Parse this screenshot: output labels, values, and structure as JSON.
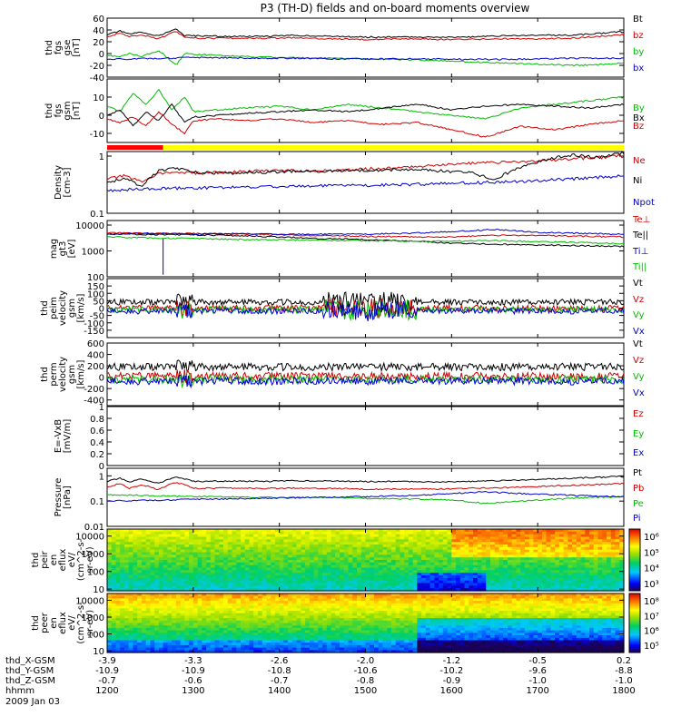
{
  "title": "P3 (TH-D) fields and on-board moments overview",
  "date": "2009 Jan 03",
  "chart_data": [
    {
      "id": "fgs_gse",
      "type": "line",
      "ylabel": [
        "thd",
        "fgs",
        "gse",
        "[nT]"
      ],
      "ylim": [
        -40,
        60
      ],
      "yticks": [
        60,
        40,
        20,
        0,
        -20,
        -40
      ],
      "series": [
        {
          "name": "Bt",
          "color": "#000000",
          "x": [
            1200,
            1215,
            1225,
            1240,
            1260,
            1280,
            1290,
            1310,
            1340,
            1380,
            1420,
            1460,
            1500,
            1540,
            1580,
            1620,
            1660,
            1700,
            1740,
            1770,
            1800
          ],
          "y": [
            32,
            38,
            33,
            36,
            30,
            42,
            30,
            30,
            29,
            29,
            31,
            29,
            28,
            28,
            28,
            28,
            30,
            31,
            31,
            34,
            37
          ]
        },
        {
          "name": "bz",
          "color": "#d00000",
          "x": [
            1200,
            1215,
            1225,
            1240,
            1260,
            1280,
            1290,
            1310,
            1340,
            1380,
            1420,
            1460,
            1500,
            1540,
            1580,
            1620,
            1660,
            1700,
            1740,
            1770,
            1800
          ],
          "y": [
            28,
            35,
            28,
            32,
            25,
            38,
            27,
            26,
            26,
            26,
            27,
            25,
            24,
            25,
            24,
            24,
            25,
            25,
            26,
            29,
            32
          ]
        },
        {
          "name": "by",
          "color": "#00bb00",
          "x": [
            1200,
            1215,
            1225,
            1240,
            1260,
            1280,
            1290,
            1310,
            1340,
            1380,
            1420,
            1460,
            1500,
            1540,
            1580,
            1620,
            1660,
            1700,
            1740,
            1770,
            1800
          ],
          "y": [
            -3,
            -5,
            0,
            -5,
            5,
            -20,
            0,
            -2,
            -4,
            -6,
            -7,
            -8,
            -9,
            -10,
            -12,
            -14,
            -16,
            -18,
            -20,
            -19,
            -16
          ]
        },
        {
          "name": "bx",
          "color": "#0000cc",
          "x": [
            1200,
            1230,
            1260,
            1300,
            1340,
            1380,
            1420,
            1460,
            1500,
            1540,
            1580,
            1620,
            1660,
            1700,
            1740,
            1800
          ],
          "y": [
            -10,
            -9,
            -8,
            -7,
            -7,
            -8,
            -8,
            -9,
            -9,
            -9,
            -9,
            -10,
            -10,
            -9,
            -8,
            -8
          ]
        }
      ]
    },
    {
      "id": "fgs_gsm",
      "type": "line",
      "ylabel": [
        "thd",
        "fgs",
        "gsm",
        "[nT]"
      ],
      "ylim": [
        -15,
        20
      ],
      "yticks": [
        10,
        0,
        -10
      ],
      "series": [
        {
          "name": "By",
          "color": "#00bb00",
          "x": [
            1200,
            1215,
            1230,
            1245,
            1260,
            1275,
            1290,
            1300,
            1330,
            1360,
            1400,
            1440,
            1480,
            1520,
            1560,
            1600,
            1640,
            1680,
            1720,
            1760,
            1800
          ],
          "y": [
            5,
            2,
            12,
            6,
            14,
            3,
            10,
            2,
            3,
            4,
            5,
            3,
            6,
            4,
            2,
            0,
            -2,
            4,
            6,
            8,
            10
          ]
        },
        {
          "name": "Bx",
          "color": "#000000",
          "x": [
            1200,
            1215,
            1230,
            1245,
            1260,
            1275,
            1290,
            1300,
            1330,
            1360,
            1400,
            1440,
            1480,
            1520,
            1560,
            1600,
            1640,
            1680,
            1720,
            1760,
            1800
          ],
          "y": [
            0,
            3,
            -6,
            2,
            -3,
            6,
            -4,
            -1,
            0,
            1,
            2,
            3,
            2,
            4,
            6,
            3,
            5,
            6,
            5,
            4,
            6
          ]
        },
        {
          "name": "Bz",
          "color": "#d00000",
          "x": [
            1200,
            1215,
            1230,
            1245,
            1260,
            1275,
            1290,
            1300,
            1330,
            1360,
            1400,
            1440,
            1480,
            1520,
            1560,
            1600,
            1640,
            1680,
            1720,
            1760,
            1800
          ],
          "y": [
            -2,
            -4,
            -1,
            -6,
            2,
            -5,
            -10,
            -3,
            -2,
            -3,
            -2,
            -4,
            -3,
            -5,
            -4,
            -8,
            -12,
            -6,
            -8,
            -5,
            -3
          ]
        }
      ]
    },
    {
      "id": "density",
      "type": "line",
      "yscale": "log",
      "ylabel": [
        "Density",
        "[cm-3]"
      ],
      "ylim": [
        0.1,
        1.2
      ],
      "yticks": [
        1.0,
        0.1
      ],
      "series": [
        {
          "name": "Ne",
          "color": "#d00000",
          "x": [
            1200,
            1220,
            1240,
            1260,
            1280,
            1300,
            1340,
            1380,
            1420,
            1460,
            1500,
            1540,
            1580,
            1620,
            1660,
            1700,
            1740,
            1800
          ],
          "y": [
            0.4,
            0.45,
            0.35,
            0.5,
            0.52,
            0.5,
            0.52,
            0.55,
            0.56,
            0.55,
            0.6,
            0.62,
            0.7,
            0.75,
            0.78,
            0.82,
            0.9,
            1.0
          ]
        },
        {
          "name": "Ni",
          "color": "#000000",
          "x": [
            1200,
            1220,
            1240,
            1260,
            1280,
            1300,
            1340,
            1380,
            1420,
            1460,
            1500,
            1540,
            1580,
            1620,
            1650,
            1670,
            1700,
            1740,
            1770,
            1800
          ],
          "y": [
            0.35,
            0.4,
            0.3,
            0.55,
            0.62,
            0.52,
            0.5,
            0.52,
            0.55,
            0.55,
            0.57,
            0.58,
            0.56,
            0.52,
            0.38,
            0.55,
            0.8,
            1.05,
            0.95,
            1.15
          ]
        },
        {
          "name": "Npot",
          "color": "#0000cc",
          "x": [
            1200,
            1260,
            1320,
            1380,
            1440,
            1500,
            1560,
            1620,
            1680,
            1740,
            1800
          ],
          "y": [
            0.25,
            0.27,
            0.28,
            0.29,
            0.3,
            0.31,
            0.32,
            0.34,
            0.36,
            0.4,
            0.45
          ]
        }
      ]
    },
    {
      "id": "mag_temp",
      "type": "line",
      "yscale": "log",
      "ylabel": [
        "mag",
        "gt3",
        "[eV]"
      ],
      "ylim": [
        100,
        15000
      ],
      "yticks": [
        10000,
        1000,
        100
      ],
      "series": [
        {
          "name": "Te⊥",
          "color": "#d00000",
          "x": [
            1200,
            1250,
            1300,
            1350,
            1400,
            1450,
            1500,
            1550,
            1600,
            1650,
            1700,
            1750,
            1800
          ],
          "y": [
            5000,
            4800,
            4700,
            4500,
            4200,
            3900,
            3700,
            3500,
            3500,
            4000,
            4000,
            3700,
            3500
          ]
        },
        {
          "name": "Te||",
          "color": "#000000",
          "x": [
            1200,
            1250,
            1300,
            1350,
            1400,
            1450,
            1500,
            1550,
            1600,
            1650,
            1700,
            1750,
            1800
          ],
          "y": [
            4500,
            4300,
            4200,
            3900,
            3500,
            3000,
            2800,
            2400,
            2000,
            1800,
            1700,
            1600,
            1500
          ]
        },
        {
          "name": "Ti⊥",
          "color": "#0000cc",
          "x": [
            1200,
            1250,
            1300,
            1350,
            1400,
            1450,
            1500,
            1550,
            1600,
            1650,
            1700,
            1750,
            1800
          ],
          "y": [
            4500,
            4800,
            4500,
            4700,
            4400,
            4400,
            4500,
            4800,
            5500,
            6800,
            5200,
            4800,
            4400
          ]
        },
        {
          "name": "Ti||",
          "color": "#00bb00",
          "x": [
            1200,
            1250,
            1300,
            1350,
            1400,
            1450,
            1500,
            1550,
            1600,
            1650,
            1700,
            1750,
            1800
          ],
          "y": [
            3500,
            3200,
            3000,
            2800,
            2700,
            2600,
            2500,
            2400,
            2400,
            2500,
            2300,
            2100,
            1900
          ]
        }
      ]
    },
    {
      "id": "peim_velocity",
      "type": "line",
      "ylabel": [
        "thd",
        "peim",
        "velocity",
        "gsm",
        "[km/s]"
      ],
      "ylim": [
        -200,
        200
      ],
      "yticks": [
        150,
        100,
        50,
        0,
        -50,
        -100,
        -150
      ],
      "series": [
        {
          "name": "Vt",
          "color": "#000000"
        },
        {
          "name": "Vz",
          "color": "#d00000"
        },
        {
          "name": "Vy",
          "color": "#00bb00"
        },
        {
          "name": "Vx",
          "color": "#0000cc"
        }
      ]
    },
    {
      "id": "perm_velocity",
      "type": "line",
      "ylabel": [
        "thd",
        "perm",
        "velocity",
        "gsm",
        "[km/s]"
      ],
      "ylim": [
        -500,
        600
      ],
      "yticks": [
        600,
        400,
        200,
        0,
        -200,
        -400
      ],
      "series": [
        {
          "name": "Vt",
          "color": "#000000"
        },
        {
          "name": "Vz",
          "color": "#d00000"
        },
        {
          "name": "Vy",
          "color": "#00bb00"
        },
        {
          "name": "Vx",
          "color": "#0000cc"
        }
      ]
    },
    {
      "id": "efield",
      "type": "line",
      "ylabel": [
        "E=-VxB",
        "[mV/m]"
      ],
      "ylim": [
        0.0,
        1.0
      ],
      "yticks": [
        1.0,
        0.8,
        0.6,
        0.4,
        0.2,
        0.0
      ],
      "series": [
        {
          "name": "Ez",
          "color": "#d00000"
        },
        {
          "name": "Ey",
          "color": "#00bb00"
        },
        {
          "name": "Ex",
          "color": "#0000cc"
        }
      ]
    },
    {
      "id": "pressure",
      "type": "line",
      "yscale": "log",
      "ylabel": [
        "Pressure",
        "[nPa]"
      ],
      "ylim": [
        0.01,
        2.0
      ],
      "yticks": [
        1.0,
        0.1,
        0.01
      ],
      "series": [
        {
          "name": "Pt",
          "color": "#000000",
          "x": [
            1200,
            1215,
            1225,
            1240,
            1260,
            1280,
            1300,
            1340,
            1380,
            1420,
            1460,
            1500,
            1540,
            1580,
            1620,
            1660,
            1700,
            1740,
            1800
          ],
          "y": [
            0.6,
            0.8,
            0.55,
            0.75,
            0.5,
            0.9,
            0.6,
            0.62,
            0.6,
            0.65,
            0.62,
            0.6,
            0.6,
            0.58,
            0.6,
            0.65,
            0.72,
            0.8,
            0.95
          ]
        },
        {
          "name": "Pb",
          "color": "#d00000",
          "x": [
            1200,
            1215,
            1225,
            1240,
            1260,
            1280,
            1300,
            1340,
            1380,
            1420,
            1460,
            1500,
            1540,
            1580,
            1620,
            1660,
            1700,
            1740,
            1800
          ],
          "y": [
            0.35,
            0.5,
            0.3,
            0.45,
            0.28,
            0.55,
            0.32,
            0.33,
            0.32,
            0.33,
            0.32,
            0.3,
            0.3,
            0.3,
            0.32,
            0.34,
            0.38,
            0.42,
            0.5
          ]
        },
        {
          "name": "Pe",
          "color": "#00bb00",
          "x": [
            1200,
            1260,
            1320,
            1380,
            1440,
            1500,
            1560,
            1600,
            1640,
            1680,
            1720,
            1760,
            1800
          ],
          "y": [
            0.18,
            0.16,
            0.15,
            0.14,
            0.14,
            0.13,
            0.12,
            0.11,
            0.08,
            0.1,
            0.12,
            0.14,
            0.15
          ]
        },
        {
          "name": "Pi",
          "color": "#0000cc",
          "x": [
            1200,
            1260,
            1320,
            1380,
            1440,
            1500,
            1560,
            1600,
            1640,
            1680,
            1720,
            1760,
            1800
          ],
          "y": [
            0.1,
            0.11,
            0.12,
            0.13,
            0.14,
            0.15,
            0.17,
            0.2,
            0.23,
            0.2,
            0.18,
            0.16,
            0.15
          ]
        }
      ]
    },
    {
      "id": "peir_eflux",
      "type": "heatmap",
      "yscale": "log",
      "ylabel": [
        "thd",
        "peir",
        "en",
        "eflux",
        "eV/",
        "(cm^2-s-",
        "sr-eV)"
      ],
      "ylim": [
        8,
        25000
      ],
      "yticks": [
        10000,
        1000,
        100,
        10
      ],
      "colorbar": {
        "ticks": [
          "10⁶",
          "10⁵",
          "10⁴",
          "10³"
        ]
      }
    },
    {
      "id": "peer_eflux",
      "type": "heatmap",
      "yscale": "log",
      "ylabel": [
        "thd",
        "peer",
        "en",
        "eflux",
        "eV/",
        "(cm^2-s-",
        "sr-eV)"
      ],
      "ylim": [
        8,
        25000
      ],
      "yticks": [
        10000,
        1000,
        100,
        10
      ],
      "colorbar": {
        "ticks": [
          "10⁸",
          "10⁷",
          "10⁶",
          "10⁵"
        ]
      }
    }
  ],
  "mode_bar": {
    "colors": {
      "slow": "#ff0000",
      "fast": "#ffff00"
    },
    "segments": [
      {
        "from": 1200,
        "to": 1265,
        "mode": "slow"
      },
      {
        "from": 1265,
        "to": 1800,
        "mode": "fast"
      }
    ]
  },
  "x_axis": {
    "ticks_hhmm": [
      "1200",
      "1300",
      "1400",
      "1500",
      "1600",
      "1700",
      "1800"
    ],
    "rows": [
      {
        "label": "thd_X-GSM",
        "values": [
          "-3.9",
          "-3.3",
          "-2.6",
          "-2.0",
          "-1.2",
          "-0.5",
          "0.2"
        ]
      },
      {
        "label": "thd_Y-GSM",
        "values": [
          "-10.9",
          "-10.9",
          "-10.8",
          "-10.6",
          "-10.2",
          "-9.6",
          "-8.8"
        ]
      },
      {
        "label": "thd_Z-GSM",
        "values": [
          "-0.7",
          "-0.6",
          "-0.7",
          "-0.8",
          "-0.9",
          "-1.0",
          "-1.0"
        ]
      },
      {
        "label": "hhmm",
        "values": [
          "1200",
          "1300",
          "1400",
          "1500",
          "1600",
          "1700",
          "1800"
        ]
      }
    ]
  }
}
